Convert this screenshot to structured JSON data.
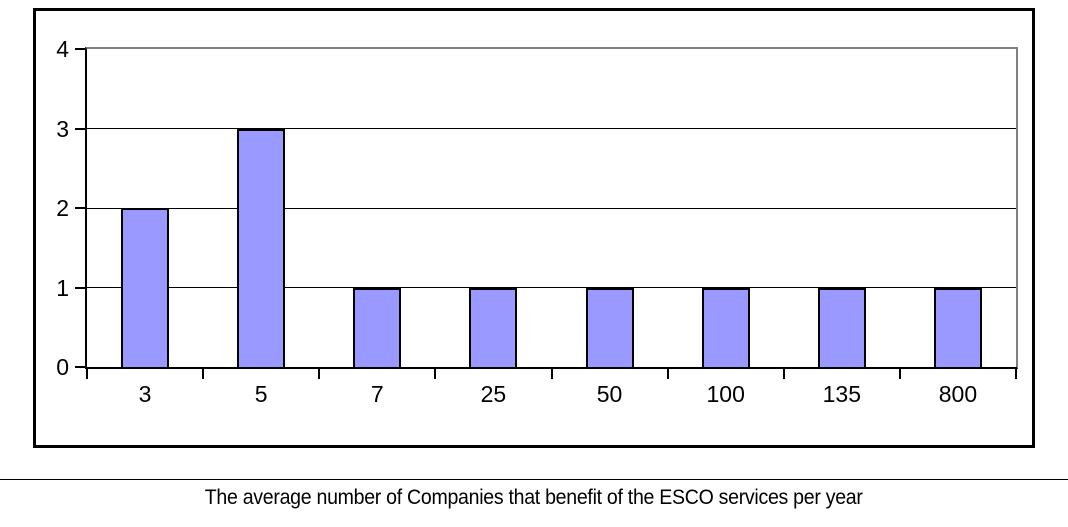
{
  "caption": "The average number of Companies that benefit of the ESCO services per year",
  "chart_data": {
    "type": "bar",
    "categories": [
      "3",
      "5",
      "7",
      "25",
      "50",
      "100",
      "135",
      "800"
    ],
    "values": [
      2,
      3,
      1,
      1,
      1,
      1,
      1,
      1
    ],
    "title": "",
    "xlabel": "",
    "ylabel": "",
    "ylim": [
      0,
      4
    ],
    "yticks": [
      0,
      1,
      2,
      3,
      4
    ],
    "grid": "horizontal",
    "legend_position": "none",
    "bar_color": "#9999FF",
    "bar_border_color": "#000000",
    "gridline_color": "#000000",
    "axis_color": "#000000",
    "plot_outer_border_color": "#808080",
    "frame_border_color": "#000000",
    "background_color": "#FFFFFF"
  }
}
